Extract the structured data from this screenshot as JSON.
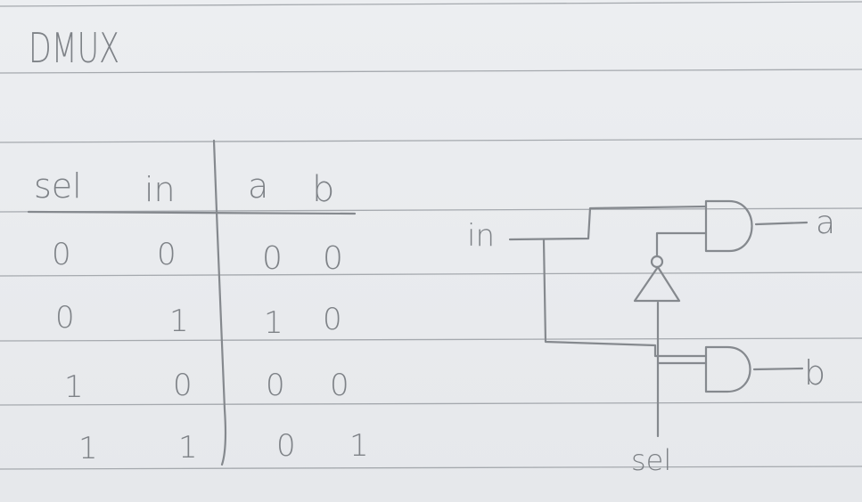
{
  "title": "DMUX",
  "truth_table": {
    "headers": [
      "sel",
      "in",
      "a",
      "b"
    ],
    "rows": [
      [
        "0",
        "0",
        "0",
        "0"
      ],
      [
        "0",
        "1",
        "1",
        "0"
      ],
      [
        "1",
        "0",
        "0",
        "0"
      ],
      [
        "1",
        "1",
        "0",
        "1"
      ]
    ]
  },
  "circuit": {
    "input_label": "in",
    "select_label": "sel",
    "output_a": "a",
    "output_b": "b"
  }
}
